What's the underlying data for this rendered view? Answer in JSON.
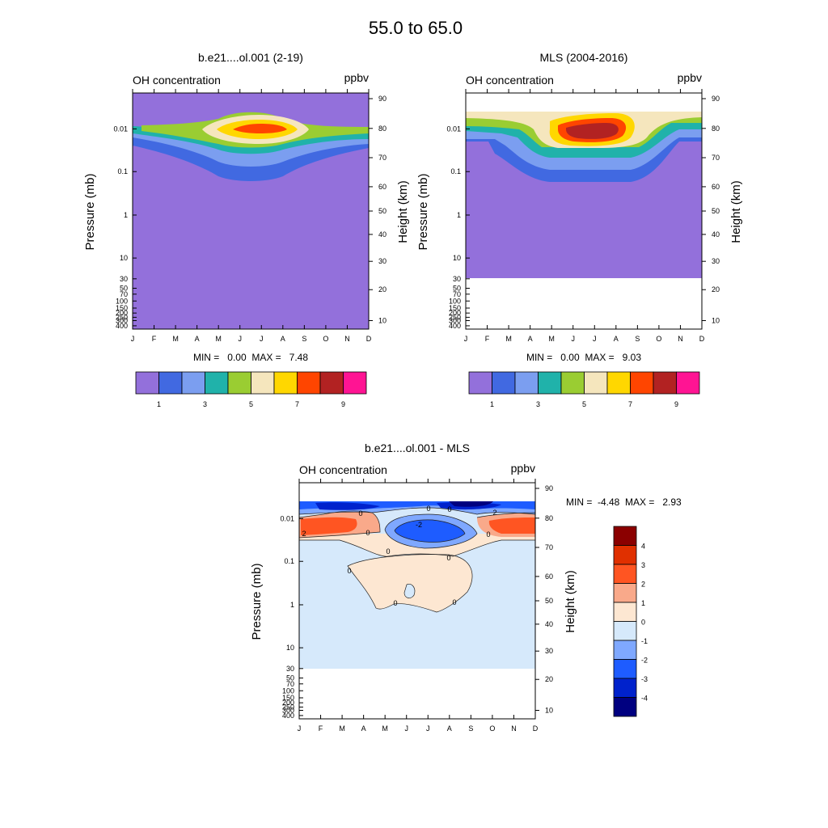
{
  "figure": {
    "title": "55.0 to  65.0"
  },
  "months": [
    "J",
    "F",
    "M",
    "A",
    "M",
    "J",
    "J",
    "A",
    "S",
    "O",
    "N",
    "D"
  ],
  "pressure_ticks": [
    "0.01",
    "0.1",
    "1",
    "10",
    "30",
    "50",
    "70",
    "100",
    "150",
    "200",
    "250",
    "300",
    "400"
  ],
  "height_ticks": [
    "90",
    "80",
    "70",
    "60",
    "50",
    "40",
    "30",
    "20",
    "10"
  ],
  "colors": {
    "seq": [
      "#9370db",
      "#4169e1",
      "#7b9ef0",
      "#20b2aa",
      "#9acd32",
      "#f5e6bd",
      "#ffd700",
      "#ff4500",
      "#b22222",
      "#ff1493"
    ],
    "div": [
      "#000080",
      "#0022cc",
      "#1e5cff",
      "#7fa8ff",
      "#d6e9fb",
      "#fde7d2",
      "#f9a98a",
      "#ff5522",
      "#e03000",
      "#8b0000"
    ]
  },
  "chart_data": [
    {
      "type": "contour",
      "panel": "model",
      "title": "b.e21....ol.001 (2-19)",
      "left_label": "OH concentration",
      "right_label": "ppbv",
      "ylabel": "Pressure (mb)",
      "y2label": "Height (km)",
      "minmax": "MIN =   0.00  MAX =   7.48",
      "min": 0.0,
      "max": 7.48,
      "peak_month": "J",
      "peak_pressure_mb": 0.01,
      "colorbar_labels": [
        "1",
        "3",
        "5",
        "7",
        "9"
      ],
      "levels": [
        1,
        2,
        3,
        4,
        5,
        6,
        7,
        8,
        9
      ]
    },
    {
      "type": "contour",
      "panel": "obs",
      "title": "MLS (2004-2016)",
      "left_label": "OH concentration",
      "right_label": "ppbv",
      "ylabel": "Pressure (mb)",
      "y2label": "Height (km)",
      "minmax": "MIN =   0.00  MAX =   9.03",
      "min": 0.0,
      "max": 9.03,
      "peak_month": "J",
      "peak_pressure_mb": 0.01,
      "data_lower_limit_mb": 30,
      "colorbar_labels": [
        "1",
        "3",
        "5",
        "7",
        "9"
      ],
      "levels": [
        1,
        2,
        3,
        4,
        5,
        6,
        7,
        8,
        9
      ]
    },
    {
      "type": "contour",
      "panel": "diff",
      "title": "b.e21....ol.001 - MLS",
      "left_label": "OH concentration",
      "right_label": "ppbv",
      "ylabel": "Pressure (mb)",
      "y2label": "Height (km)",
      "minmax": "MIN =  -4.48  MAX =   2.93",
      "min": -4.48,
      "max": 2.93,
      "data_lower_limit_mb": 30,
      "colorbar_labels": [
        "4",
        "3",
        "2",
        "1",
        "0",
        "-1",
        "-2",
        "-3",
        "-4"
      ],
      "levels": [
        -4,
        -3,
        -2,
        -1,
        0,
        1,
        2,
        3,
        4
      ],
      "contour_labels": [
        "2",
        "0",
        "0",
        "0",
        "-2",
        "0",
        "0",
        "2",
        "0",
        "0",
        "0",
        "0",
        "0"
      ]
    }
  ]
}
